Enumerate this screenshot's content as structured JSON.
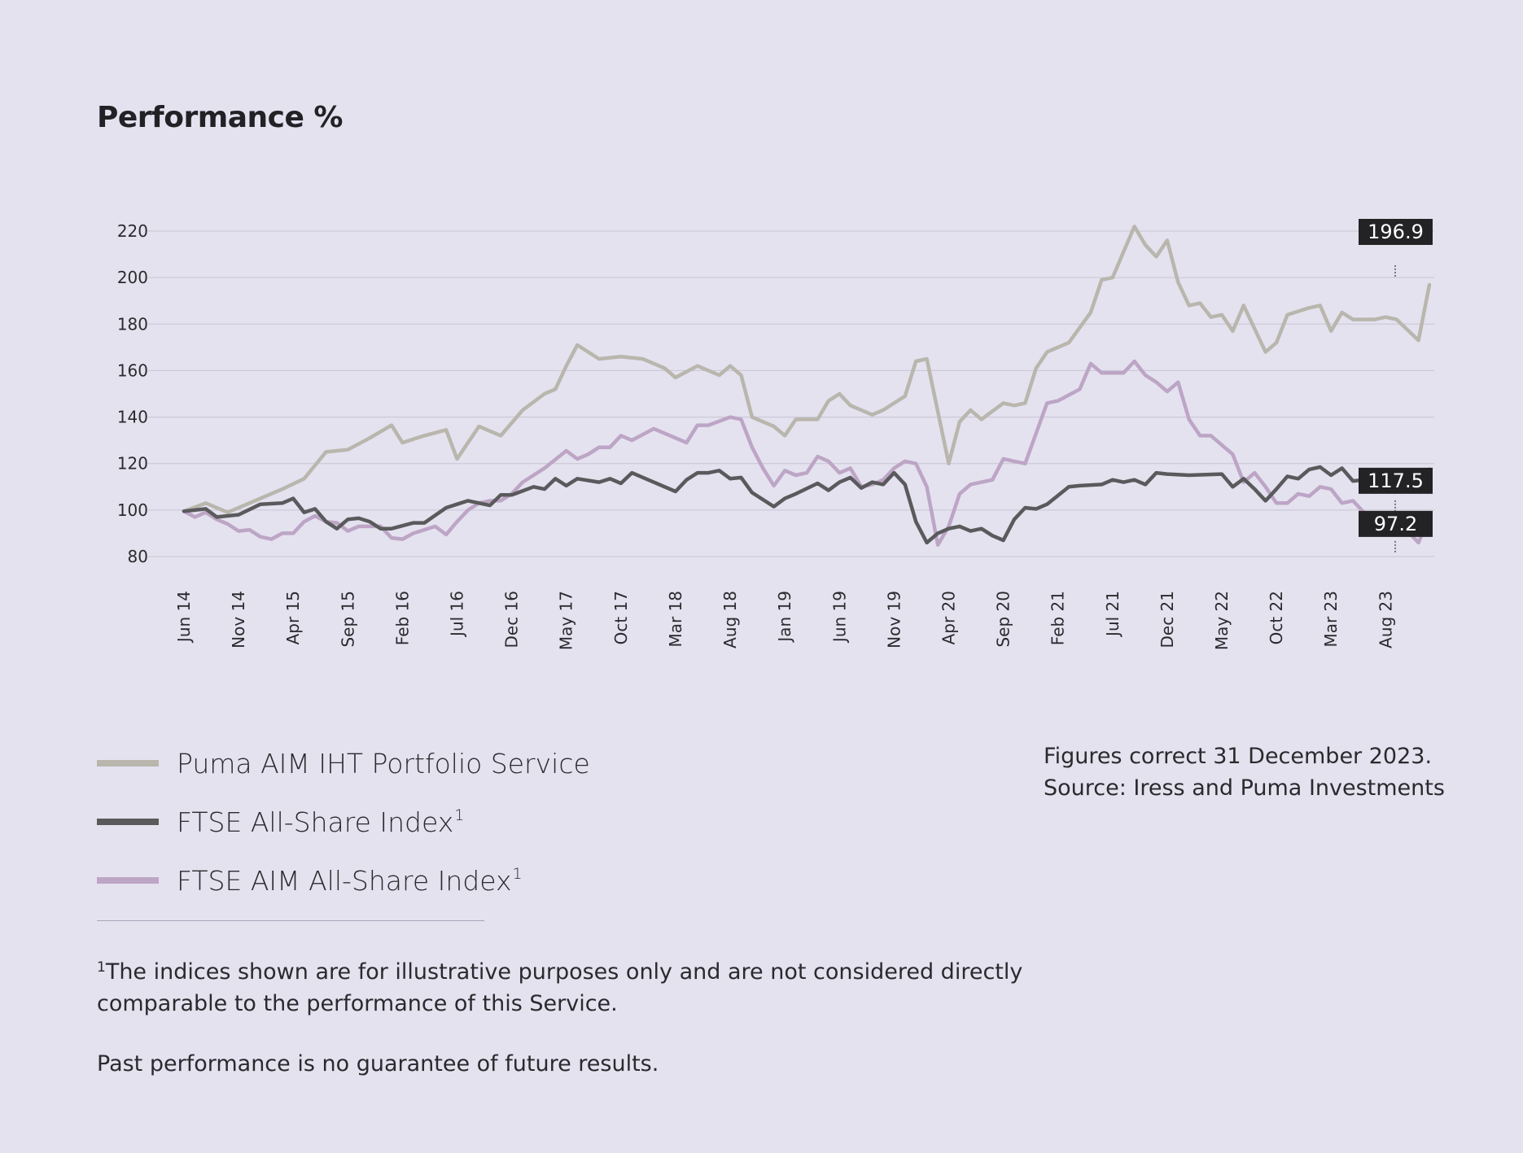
{
  "page": {
    "title": "Performance %",
    "legend": [
      {
        "label": "Puma AIM IHT Portfolio Service",
        "sup": "",
        "color": "#b9b6ad"
      },
      {
        "label": "FTSE All-Share Index",
        "sup": "1",
        "color": "#5a5a5d"
      },
      {
        "label": "FTSE AIM All-Share Index",
        "sup": "1",
        "color": "#bda5c6"
      }
    ],
    "note_line1": "Figures correct 31 December 2023.",
    "note_line2": "Source: Iress and Puma Investments",
    "footnote_sup": "1",
    "footnote_text": "The indices shown are for illustrative purposes only and are not considered directly comparable to the performance of this Service.",
    "disclaimer": "Past performance is no guarantee of future results."
  },
  "chart_data": {
    "type": "line",
    "title": "Performance %",
    "xlabel": "",
    "ylabel": "",
    "ylim": [
      80,
      220
    ],
    "yticks": [
      80,
      100,
      120,
      140,
      160,
      180,
      200,
      220
    ],
    "x_start": "Jun 14",
    "x_end": "Dec 23",
    "xticks": [
      "Jun 14",
      "Nov 14",
      "Apr 15",
      "Sep 15",
      "Feb 16",
      "Jul 16",
      "Dec 16",
      "May 17",
      "Oct 17",
      "Mar 18",
      "Aug 18",
      "Jan 19",
      "Jun 19",
      "Nov 19",
      "Apr 20",
      "Sep 20",
      "Feb 21",
      "Jul 21",
      "Dec 21",
      "May 22",
      "Oct 22",
      "Mar 23",
      "Aug 23"
    ],
    "grid": true,
    "legend_position": "bottom-left",
    "series": [
      {
        "name": "Puma AIM IHT Portfolio Service",
        "color": "#b9b6ad",
        "end_label": "196.9",
        "points": [
          [
            "Jun 14",
            99.5
          ],
          [
            "Aug 14",
            103
          ],
          [
            "Oct 14",
            99
          ],
          [
            "Dec 14",
            103
          ],
          [
            "Mar 15",
            109
          ],
          [
            "May 15",
            113.5
          ],
          [
            "Jul 15",
            125
          ],
          [
            "Sep 15",
            126
          ],
          [
            "Nov 15",
            131
          ],
          [
            "Jan 16",
            136.5
          ],
          [
            "Feb 16",
            129
          ],
          [
            "Apr 16",
            132
          ],
          [
            "Jun 16",
            134.5
          ],
          [
            "Jul 16",
            122
          ],
          [
            "Sep 16",
            136
          ],
          [
            "Nov 16",
            132
          ],
          [
            "Jan 17",
            143
          ],
          [
            "Mar 17",
            150
          ],
          [
            "Apr 17",
            152
          ],
          [
            "May 17",
            162
          ],
          [
            "Jun 17",
            171
          ],
          [
            "Aug 17",
            165
          ],
          [
            "Oct 17",
            166
          ],
          [
            "Dec 17",
            165
          ],
          [
            "Feb 18",
            161
          ],
          [
            "Mar 18",
            157
          ],
          [
            "May 18",
            162
          ],
          [
            "Jul 18",
            158
          ],
          [
            "Aug 18",
            162
          ],
          [
            "Sep 18",
            158
          ],
          [
            "Oct 18",
            140
          ],
          [
            "Dec 18",
            136
          ],
          [
            "Jan 19",
            132
          ],
          [
            "Feb 19",
            139
          ],
          [
            "Apr 19",
            139
          ],
          [
            "May 19",
            147
          ],
          [
            "Jun 19",
            150
          ],
          [
            "Jul 19",
            145
          ],
          [
            "Sep 19",
            141
          ],
          [
            "Oct 19",
            143
          ],
          [
            "Dec 19",
            149
          ],
          [
            "Jan 20",
            164
          ],
          [
            "Feb 20",
            165
          ],
          [
            "Apr 20",
            120
          ],
          [
            "May 20",
            138
          ],
          [
            "Jun 20",
            143
          ],
          [
            "Jul 20",
            139
          ],
          [
            "Sep 20",
            146
          ],
          [
            "Oct 20",
            145
          ],
          [
            "Nov 20",
            146
          ],
          [
            "Dec 20",
            161
          ],
          [
            "Jan 21",
            168
          ],
          [
            "Mar 21",
            172
          ],
          [
            "May 21",
            185
          ],
          [
            "Jun 21",
            199
          ],
          [
            "Jul 21",
            200
          ],
          [
            "Sep 21",
            222
          ],
          [
            "Oct 21",
            214
          ],
          [
            "Nov 21",
            209
          ],
          [
            "Dec 21",
            216
          ],
          [
            "Jan 22",
            198
          ],
          [
            "Feb 22",
            188
          ],
          [
            "Mar 22",
            189
          ],
          [
            "Apr 22",
            183
          ],
          [
            "May 22",
            184
          ],
          [
            "Jun 22",
            177
          ],
          [
            "Jul 22",
            188
          ],
          [
            "Sep 22",
            168
          ],
          [
            "Oct 22",
            172
          ],
          [
            "Nov 22",
            184
          ],
          [
            "Jan 23",
            187
          ],
          [
            "Feb 23",
            188
          ],
          [
            "Mar 23",
            177
          ],
          [
            "Apr 23",
            185
          ],
          [
            "May 23",
            182
          ],
          [
            "Jul 23",
            182
          ],
          [
            "Aug 23",
            183
          ],
          [
            "Sep 23",
            182
          ],
          [
            "Nov 23",
            173
          ],
          [
            "Dec 23",
            196.9
          ]
        ]
      },
      {
        "name": "FTSE All-Share Index",
        "color": "#5a5a5d",
        "end_label": "117.5",
        "points": [
          [
            "Jun 14",
            99.5
          ],
          [
            "Aug 14",
            100.5
          ],
          [
            "Sep 14",
            97
          ],
          [
            "Nov 14",
            98
          ],
          [
            "Jan 15",
            102.5
          ],
          [
            "Mar 15",
            103
          ],
          [
            "Apr 15",
            105
          ],
          [
            "May 15",
            99
          ],
          [
            "Jun 15",
            100.5
          ],
          [
            "Jul 15",
            95
          ],
          [
            "Aug 15",
            92
          ],
          [
            "Sep 15",
            96
          ],
          [
            "Oct 15",
            96.5
          ],
          [
            "Nov 15",
            95
          ],
          [
            "Dec 15",
            92
          ],
          [
            "Jan 16",
            92
          ],
          [
            "Mar 16",
            94.5
          ],
          [
            "Apr 16",
            94.5
          ],
          [
            "Jun 16",
            101
          ],
          [
            "Jul 16",
            102.5
          ],
          [
            "Aug 16",
            104
          ],
          [
            "Oct 16",
            102
          ],
          [
            "Nov 16",
            106.5
          ],
          [
            "Dec 16",
            106.5
          ],
          [
            "Feb 17",
            110
          ],
          [
            "Mar 17",
            109
          ],
          [
            "Apr 17",
            113.5
          ],
          [
            "May 17",
            110.5
          ],
          [
            "Jun 17",
            113.5
          ],
          [
            "Aug 17",
            112
          ],
          [
            "Sep 17",
            113.5
          ],
          [
            "Oct 17",
            111.5
          ],
          [
            "Nov 17",
            116
          ],
          [
            "Jan 18",
            112
          ],
          [
            "Mar 18",
            108
          ],
          [
            "Apr 18",
            113
          ],
          [
            "May 18",
            116
          ],
          [
            "Jun 18",
            116
          ],
          [
            "Jul 18",
            117
          ],
          [
            "Aug 18",
            113.5
          ],
          [
            "Sep 18",
            114
          ],
          [
            "Oct 18",
            107.5
          ],
          [
            "Dec 18",
            101.5
          ],
          [
            "Jan 19",
            105
          ],
          [
            "Feb 19",
            107
          ],
          [
            "Apr 19",
            111.5
          ],
          [
            "May 19",
            108.5
          ],
          [
            "Jun 19",
            112
          ],
          [
            "Jul 19",
            114
          ],
          [
            "Aug 19",
            109.5
          ],
          [
            "Sep 19",
            112
          ],
          [
            "Oct 19",
            111
          ],
          [
            "Nov 19",
            116
          ],
          [
            "Dec 19",
            111
          ],
          [
            "Jan 20",
            95
          ],
          [
            "Feb 20",
            86
          ],
          [
            "Mar 20",
            90
          ],
          [
            "Apr 20",
            92
          ],
          [
            "May 20",
            93
          ],
          [
            "Jun 20",
            91
          ],
          [
            "Jul 20",
            92
          ],
          [
            "Aug 20",
            89
          ],
          [
            "Sep 20",
            87
          ],
          [
            "Oct 20",
            96
          ],
          [
            "Nov 20",
            101
          ],
          [
            "Dec 20",
            100.5
          ],
          [
            "Jan 21",
            102.5
          ],
          [
            "Mar 21",
            110
          ],
          [
            "Apr 21",
            110.5
          ],
          [
            "Jun 21",
            111
          ],
          [
            "Jul 21",
            113
          ],
          [
            "Aug 21",
            112
          ],
          [
            "Sep 21",
            113
          ],
          [
            "Oct 21",
            111
          ],
          [
            "Nov 21",
            116
          ],
          [
            "Dec 21",
            115.5
          ],
          [
            "Feb 22",
            115
          ],
          [
            "May 22",
            115.5
          ],
          [
            "Jun 22",
            110
          ],
          [
            "Jul 22",
            113.5
          ],
          [
            "Aug 22",
            109
          ],
          [
            "Sep 22",
            104
          ],
          [
            "Oct 22",
            109
          ],
          [
            "Nov 22",
            114.5
          ],
          [
            "Dec 22",
            113.5
          ],
          [
            "Jan 23",
            117.5
          ],
          [
            "Feb 23",
            118.5
          ],
          [
            "Mar 23",
            115
          ],
          [
            "Apr 23",
            118
          ],
          [
            "May 23",
            112.5
          ],
          [
            "Jun 23",
            113
          ],
          [
            "Jul 23",
            116
          ],
          [
            "Aug 23",
            112.5
          ],
          [
            "Sep 23",
            114
          ],
          [
            "Oct 23",
            110
          ],
          [
            "Nov 23",
            113
          ],
          [
            "Dec 23",
            117.5
          ]
        ]
      },
      {
        "name": "FTSE AIM All-Share Index",
        "color": "#bda5c6",
        "end_label": "97.2",
        "points": [
          [
            "Jun 14",
            99.5
          ],
          [
            "Jul 14",
            97
          ],
          [
            "Aug 14",
            99
          ],
          [
            "Sep 14",
            96
          ],
          [
            "Oct 14",
            94
          ],
          [
            "Nov 14",
            91
          ],
          [
            "Dec 14",
            91.5
          ],
          [
            "Jan 15",
            88.5
          ],
          [
            "Feb 15",
            87.5
          ],
          [
            "Mar 15",
            90
          ],
          [
            "Apr 15",
            90
          ],
          [
            "May 15",
            95
          ],
          [
            "Jun 15",
            97.5
          ],
          [
            "Jul 15",
            95
          ],
          [
            "Aug 15",
            94.5
          ],
          [
            "Sep 15",
            91
          ],
          [
            "Oct 15",
            93
          ],
          [
            "Dec 15",
            93
          ],
          [
            "Jan 16",
            88
          ],
          [
            "Feb 16",
            87.5
          ],
          [
            "Mar 16",
            90
          ],
          [
            "May 16",
            93
          ],
          [
            "Jun 16",
            89.5
          ],
          [
            "Jul 16",
            95
          ],
          [
            "Aug 16",
            100
          ],
          [
            "Sep 16",
            103
          ],
          [
            "Oct 16",
            104
          ],
          [
            "Nov 16",
            104
          ],
          [
            "Dec 16",
            107
          ],
          [
            "Jan 17",
            112
          ],
          [
            "Mar 17",
            118
          ],
          [
            "May 17",
            125.5
          ],
          [
            "Jun 17",
            122
          ],
          [
            "Jul 17",
            124
          ],
          [
            "Aug 17",
            127
          ],
          [
            "Sep 17",
            127
          ],
          [
            "Oct 17",
            132
          ],
          [
            "Nov 17",
            130
          ],
          [
            "Jan 18",
            135
          ],
          [
            "Feb 18",
            133
          ],
          [
            "Apr 18",
            129
          ],
          [
            "May 18",
            136.5
          ],
          [
            "Jun 18",
            136.5
          ],
          [
            "Aug 18",
            140
          ],
          [
            "Sep 18",
            139
          ],
          [
            "Oct 18",
            127
          ],
          [
            "Nov 18",
            118
          ],
          [
            "Dec 18",
            110.5
          ],
          [
            "Jan 19",
            117
          ],
          [
            "Feb 19",
            115
          ],
          [
            "Mar 19",
            116
          ],
          [
            "Apr 19",
            123
          ],
          [
            "May 19",
            121
          ],
          [
            "Jun 19",
            116
          ],
          [
            "Jul 19",
            118
          ],
          [
            "Aug 19",
            110
          ],
          [
            "Sep 19",
            111
          ],
          [
            "Oct 19",
            113
          ],
          [
            "Nov 19",
            118
          ],
          [
            "Dec 19",
            121
          ],
          [
            "Jan 20",
            120
          ],
          [
            "Feb 20",
            110
          ],
          [
            "Mar 20",
            85
          ],
          [
            "Apr 20",
            93
          ],
          [
            "May 20",
            107
          ],
          [
            "Jun 20",
            111
          ],
          [
            "Jul 20",
            112
          ],
          [
            "Aug 20",
            113
          ],
          [
            "Sep 20",
            122
          ],
          [
            "Oct 20",
            121
          ],
          [
            "Nov 20",
            120
          ],
          [
            "Dec 20",
            133
          ],
          [
            "Jan 21",
            146
          ],
          [
            "Feb 21",
            147
          ],
          [
            "Apr 21",
            152
          ],
          [
            "May 21",
            163
          ],
          [
            "Jun 21",
            159
          ],
          [
            "Jul 21",
            159
          ],
          [
            "Aug 21",
            159
          ],
          [
            "Sep 21",
            164
          ],
          [
            "Oct 21",
            158
          ],
          [
            "Nov 21",
            155
          ],
          [
            "Dec 21",
            151
          ],
          [
            "Jan 22",
            155
          ],
          [
            "Feb 22",
            139
          ],
          [
            "Mar 22",
            132
          ],
          [
            "Apr 22",
            132
          ],
          [
            "May 22",
            128
          ],
          [
            "Jun 22",
            124
          ],
          [
            "Jul 22",
            112
          ],
          [
            "Aug 22",
            116
          ],
          [
            "Sep 22",
            110
          ],
          [
            "Oct 22",
            103
          ],
          [
            "Nov 22",
            103
          ],
          [
            "Dec 22",
            107
          ],
          [
            "Jan 23",
            106
          ],
          [
            "Feb 23",
            110
          ],
          [
            "Mar 23",
            109
          ],
          [
            "Apr 23",
            103
          ],
          [
            "May 23",
            104
          ],
          [
            "Jun 23",
            99
          ],
          [
            "Jul 23",
            96
          ],
          [
            "Aug 23",
            95
          ],
          [
            "Sep 23",
            94
          ],
          [
            "Oct 23",
            91
          ],
          [
            "Nov 23",
            86
          ],
          [
            "Dec 23",
            97.2
          ]
        ]
      }
    ]
  }
}
